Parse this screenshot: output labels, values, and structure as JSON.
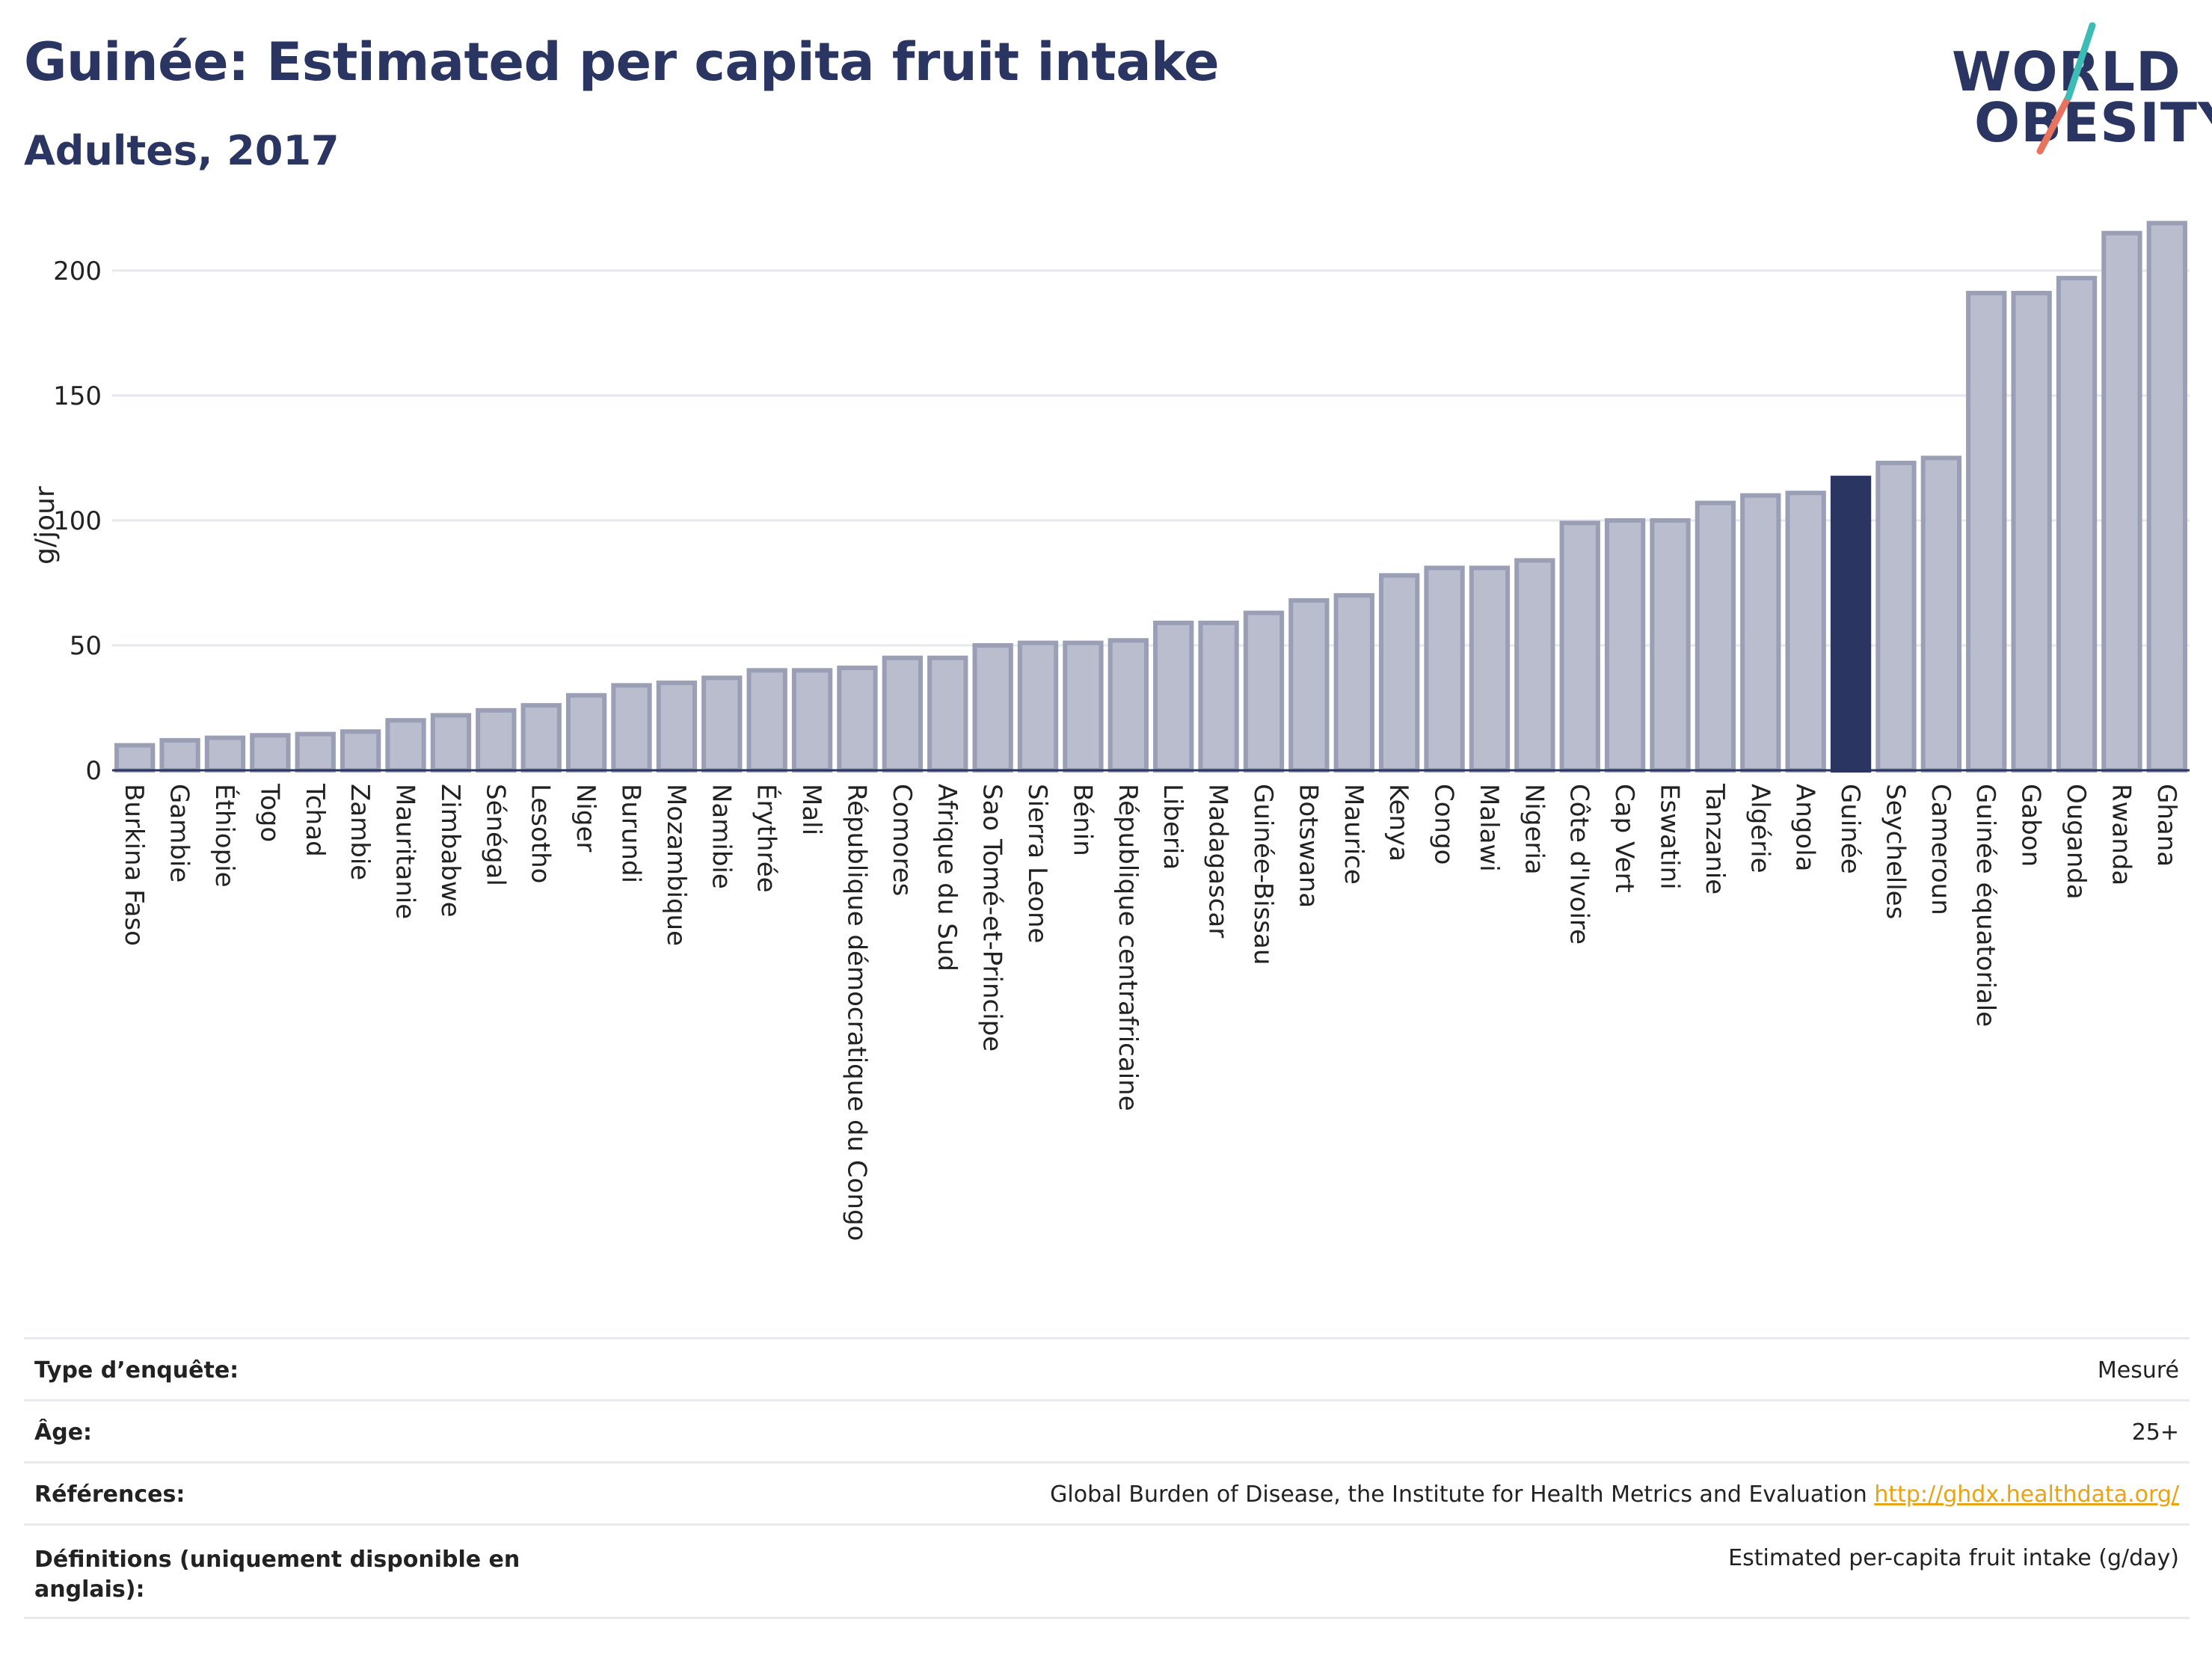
{
  "header": {
    "title": "Guinée: Estimated per capita fruit intake",
    "subtitle": "Adultes, 2017"
  },
  "logo": {
    "line1": "WORLD",
    "line2": "OBESITY"
  },
  "colors": {
    "bar": "#b9bdcd",
    "bar_edge": "#9a9fb6",
    "highlight": "#2b3562",
    "grid": "#e6e8ee",
    "logo_teal": "#3cbcb4",
    "logo_coral": "#e8735f"
  },
  "chart_data": {
    "type": "bar",
    "ylabel": "g/jour",
    "ylim": [
      0,
      220
    ],
    "yticks": [
      0,
      50,
      100,
      150,
      200
    ],
    "highlight": "Guinée",
    "categories": [
      "Burkina Faso",
      "Gambie",
      "Éthiopie",
      "Togo",
      "Tchad",
      "Zambie",
      "Mauritanie",
      "Zimbabwe",
      "Sénégal",
      "Lesotho",
      "Niger",
      "Burundi",
      "Mozambique",
      "Namibie",
      "Érythrée",
      "Mali",
      "République démocratique du Congo",
      "Comores",
      "Afrique du Sud",
      "Sao Tomé-et-Principe",
      "Sierra Leone",
      "Bénin",
      "République centrafricaine",
      "Liberia",
      "Madagascar",
      "Guinée-Bissau",
      "Botswana",
      "Maurice",
      "Kenya",
      "Congo",
      "Malawi",
      "Nigeria",
      "Côte d'Ivoire",
      "Cap Vert",
      "Eswatini",
      "Tanzanie",
      "Algérie",
      "Angola",
      "Guinée",
      "Seychelles",
      "Cameroun",
      "Guinée équatoriale",
      "Gabon",
      "Ouganda",
      "Rwanda",
      "Ghana"
    ],
    "values": [
      10,
      12,
      13,
      14,
      14.5,
      15.5,
      20,
      22,
      24,
      26,
      30,
      34,
      35,
      37,
      40,
      40,
      41,
      45,
      45,
      50,
      51,
      51,
      52,
      59,
      59,
      63,
      68,
      70,
      78,
      81,
      81,
      84,
      99,
      100,
      100,
      107,
      110,
      111,
      117,
      123,
      125,
      191,
      191,
      197,
      215,
      219
    ]
  },
  "info": [
    {
      "key": "Type d’enquête:",
      "value": "Mesuré",
      "link": ""
    },
    {
      "key": "Âge:",
      "value": "25+",
      "link": ""
    },
    {
      "key": "Références:",
      "value": "Global Burden of Disease, the Institute for Health Metrics and Evaluation ",
      "link": "http://ghdx.healthdata.org/"
    },
    {
      "key": "Définitions (uniquement disponible en anglais):",
      "value": "Estimated per-capita fruit intake (g/day)",
      "link": ""
    }
  ]
}
